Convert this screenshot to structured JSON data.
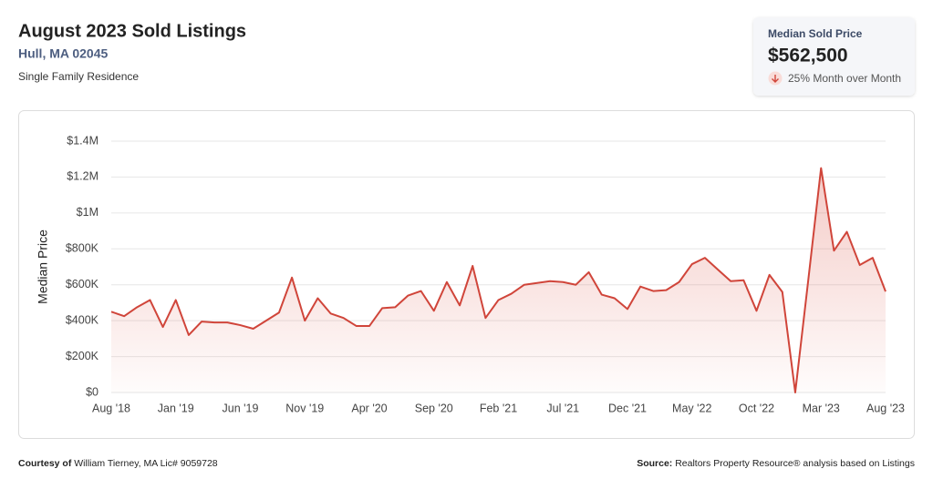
{
  "header": {
    "title": "August 2023 Sold Listings",
    "location": "Hull, MA 02045",
    "property_type": "Single Family Residence"
  },
  "kpi": {
    "label": "Median Sold Price",
    "value": "$562,500",
    "change": "25% Month over Month"
  },
  "chart_data": {
    "type": "line",
    "y_label": "Median Price",
    "color": "#d0453a",
    "grid": true,
    "categories": [
      "Aug '18",
      null,
      null,
      null,
      null,
      "Jan '19",
      null,
      null,
      null,
      null,
      "Jun '19",
      null,
      null,
      null,
      null,
      "Nov '19",
      null,
      null,
      null,
      null,
      "Apr '20",
      null,
      null,
      null,
      null,
      "Sep '20",
      null,
      null,
      null,
      null,
      "Feb '21",
      null,
      null,
      null,
      null,
      "Jul '21",
      null,
      null,
      null,
      null,
      "Dec '21",
      null,
      null,
      null,
      null,
      "May '22",
      null,
      null,
      null,
      null,
      "Oct '22",
      null,
      null,
      null,
      null,
      "Mar '23",
      null,
      null,
      null,
      null,
      "Aug '23"
    ],
    "values": [
      450000,
      425000,
      475000,
      515000,
      365000,
      515000,
      320000,
      395000,
      390000,
      390000,
      375000,
      355000,
      400000,
      445000,
      640000,
      400000,
      525000,
      440000,
      415000,
      370000,
      370000,
      470000,
      475000,
      540000,
      565000,
      455000,
      615000,
      485000,
      705000,
      415000,
      515000,
      550000,
      600000,
      610000,
      620000,
      615000,
      600000,
      670000,
      545000,
      525000,
      465000,
      590000,
      565000,
      570000,
      615000,
      715000,
      750000,
      685000,
      620000,
      625000,
      455000,
      655000,
      560000,
      0,
      620000,
      1250000,
      790000,
      895000,
      710000,
      750000,
      562500
    ],
    "ylim": [
      0,
      1400000
    ],
    "yticks": [
      {
        "value": 0,
        "label": "$0"
      },
      {
        "value": 200000,
        "label": "$200K"
      },
      {
        "value": 400000,
        "label": "$400K"
      },
      {
        "value": 600000,
        "label": "$600K"
      },
      {
        "value": 800000,
        "label": "$800K"
      },
      {
        "value": 1000000,
        "label": "$1M"
      },
      {
        "value": 1200000,
        "label": "$1.2M"
      },
      {
        "value": 1400000,
        "label": "$1.4M"
      }
    ]
  },
  "footer": {
    "courtesy_label": "Courtesy of",
    "courtesy": "William Tierney, MA Lic# 9059728",
    "source_label": "Source:",
    "source": "Realtors Property Resource® analysis based on Listings"
  }
}
